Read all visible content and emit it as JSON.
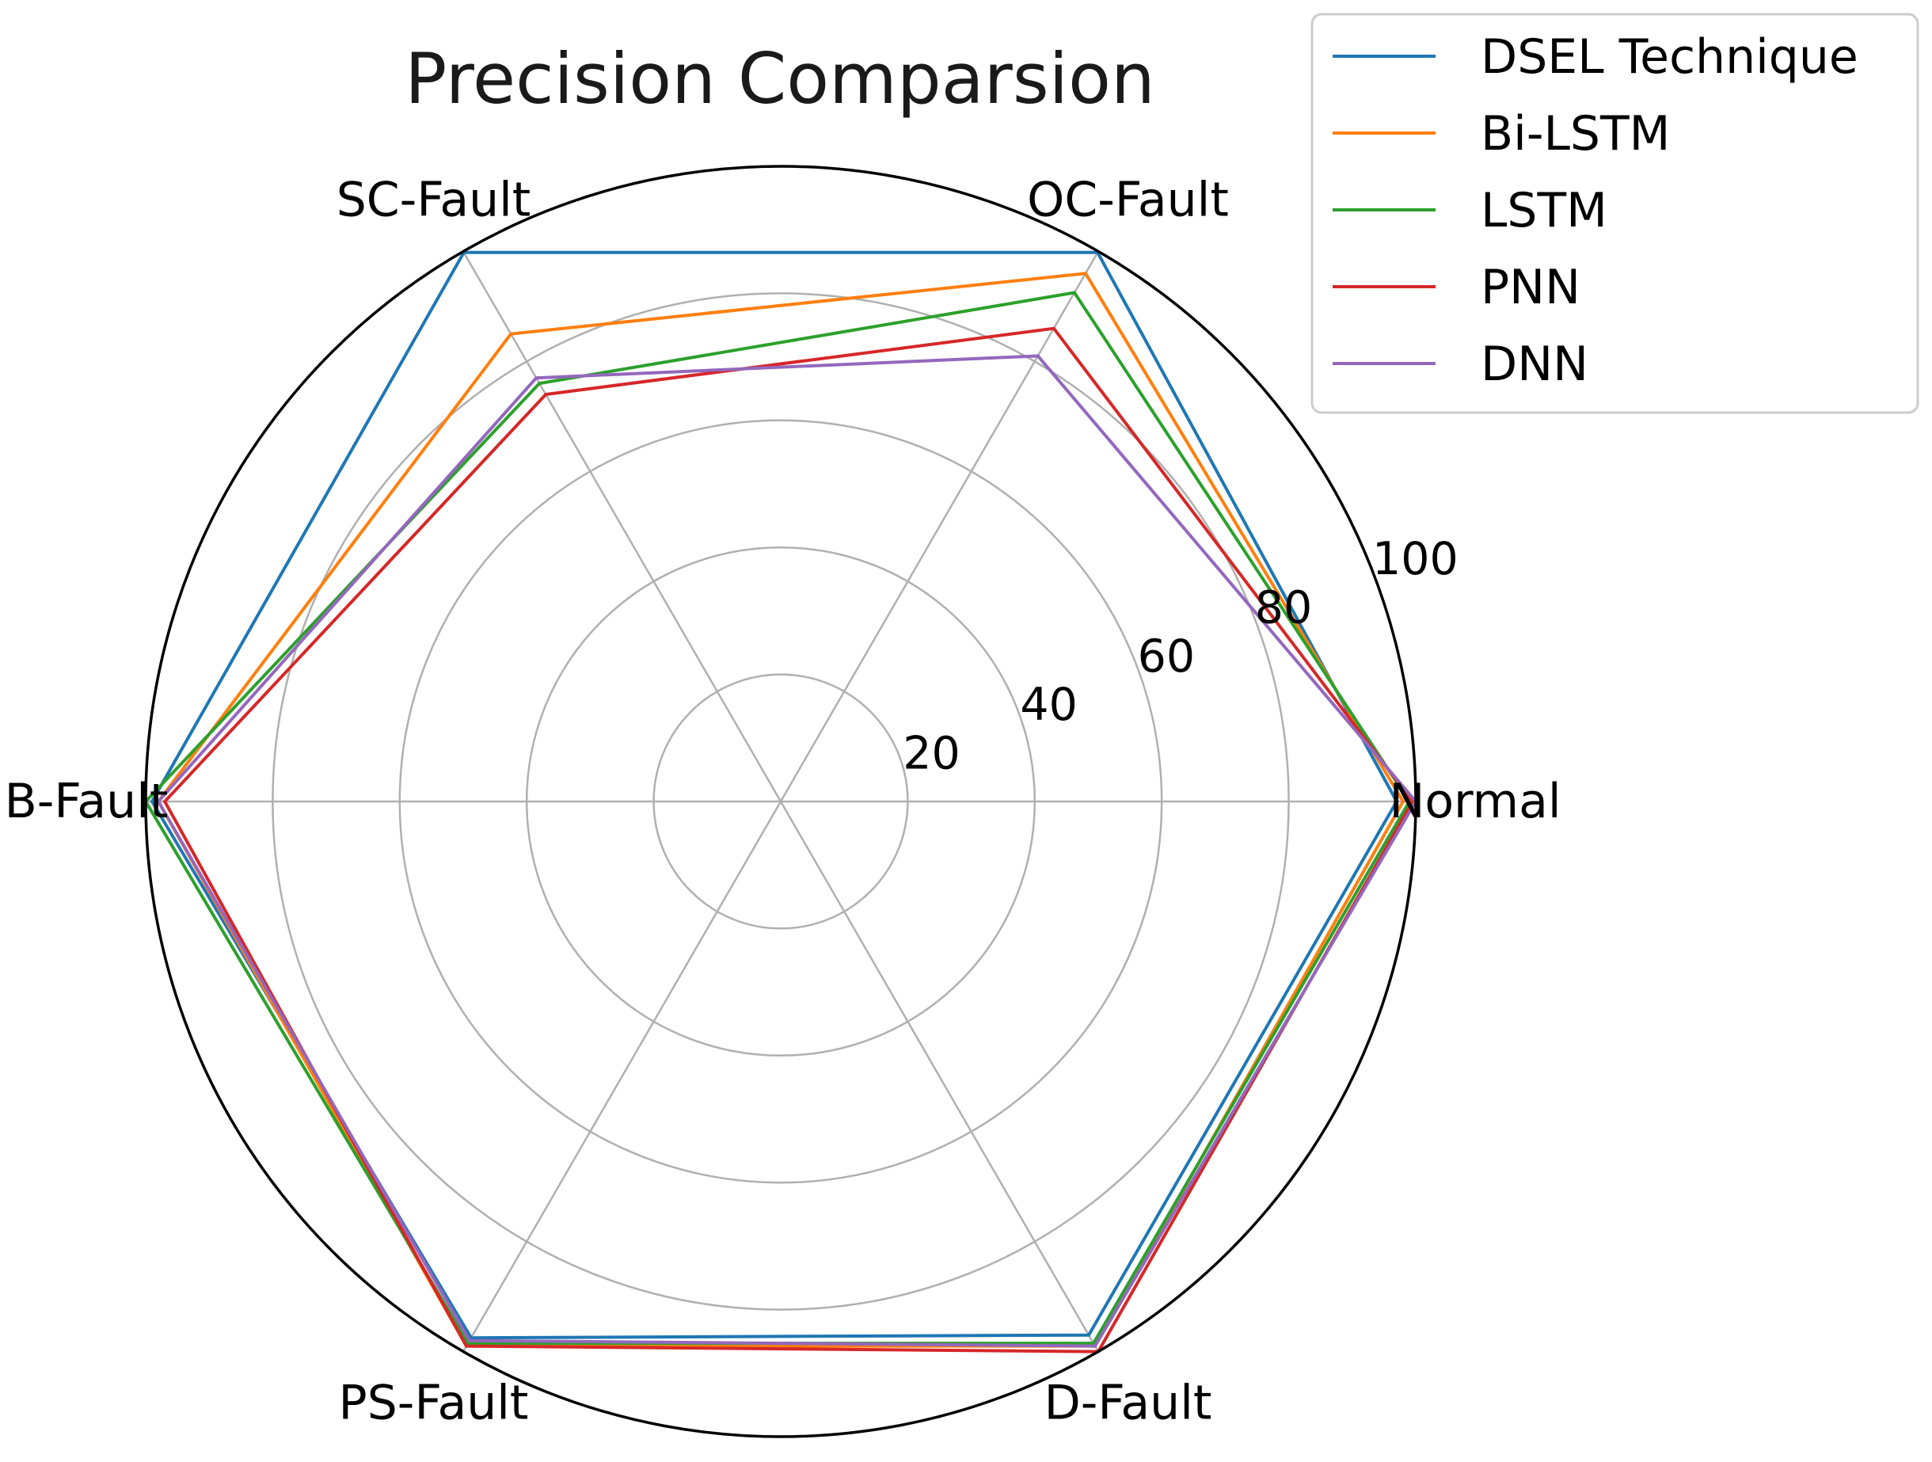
{
  "chart_data": {
    "type": "radar",
    "title": "Precision Comparsion",
    "categories": [
      "Normal",
      "OC-Fault",
      "SC-Fault",
      "B-Fault",
      "PS-Fault",
      "D-Fault"
    ],
    "r_ticks": [
      20,
      40,
      60,
      80,
      100
    ],
    "r_tick_labels": [
      "20",
      "40",
      "60",
      "80",
      "100"
    ],
    "rlim": [
      0,
      100
    ],
    "grid": true,
    "legend_position": "top-right",
    "series": [
      {
        "name": "DSEL Technique",
        "color": "#1f77b4",
        "values": [
          97,
          99.8,
          99.8,
          99,
          97.5,
          97
        ]
      },
      {
        "name": "Bi-LSTM",
        "color": "#ff7f0e",
        "values": [
          98,
          96,
          85,
          98,
          99,
          99
        ]
      },
      {
        "name": "LSTM",
        "color": "#2ca02c",
        "values": [
          99,
          92.5,
          76,
          100,
          98.5,
          98.5
        ]
      },
      {
        "name": "PNN",
        "color": "#d62728",
        "values": [
          99.5,
          86,
          74,
          97,
          99,
          100
        ]
      },
      {
        "name": "DNN",
        "color": "#9467bd",
        "values": [
          100,
          81,
          77,
          98,
          98,
          99
        ]
      }
    ]
  }
}
